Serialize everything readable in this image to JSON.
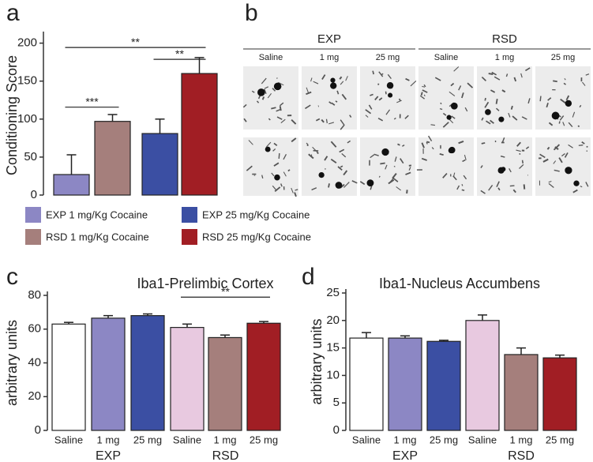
{
  "chart_data": [
    {
      "type": "bar",
      "panel": "a",
      "ylabel": "Conditioning Score",
      "categories": [
        "EXP 1 mg/Kg Cocaine",
        "RSD 1 mg/Kg Cocaine",
        "EXP 25 mg/Kg Cocaine",
        "RSD 25 mg/Kg Cocaine"
      ],
      "colors": [
        "#8c87c4",
        "#a57f7c",
        "#3b4fa3",
        "#a11e24"
      ],
      "values": [
        27,
        97,
        81,
        160
      ],
      "errors": [
        26,
        9,
        19,
        21
      ],
      "ylim": [
        0,
        210
      ],
      "yticks": [
        0,
        50,
        100,
        150,
        200
      ],
      "annotations": [
        {
          "text": "***",
          "between": [
            0,
            1
          ]
        },
        {
          "text": "**",
          "between": [
            2,
            3
          ]
        },
        {
          "text": "**",
          "between": [
            0,
            3
          ]
        }
      ]
    },
    {
      "type": "bar",
      "panel": "c",
      "title": "Iba1-Prelimbic Cortex",
      "ylabel": "arbitrary units",
      "categories": [
        "Saline",
        "1 mg",
        "25 mg",
        "Saline",
        "1 mg",
        "25 mg"
      ],
      "group_labels": [
        "EXP",
        "RSD"
      ],
      "colors": [
        "#ffffff",
        "#8c87c4",
        "#3b4fa3",
        "#e8c9e0",
        "#a57f7c",
        "#a11e24"
      ],
      "values": [
        63,
        66.5,
        68,
        61,
        55,
        63.5
      ],
      "errors": [
        1,
        1.5,
        1,
        2,
        1.5,
        1
      ],
      "ylim": [
        0,
        80
      ],
      "yticks": [
        0,
        20,
        40,
        60,
        80
      ],
      "annotations": [
        {
          "text": "**",
          "between": [
            3,
            5
          ]
        }
      ]
    },
    {
      "type": "bar",
      "panel": "d",
      "title": "Iba1-Nucleus Accumbens",
      "ylabel": "arbitrary units",
      "categories": [
        "Saline",
        "1 mg",
        "25 mg",
        "Saline",
        "1 mg",
        "25 mg"
      ],
      "group_labels": [
        "EXP",
        "RSD"
      ],
      "colors": [
        "#ffffff",
        "#8c87c4",
        "#3b4fa3",
        "#e8c9e0",
        "#a57f7c",
        "#a11e24"
      ],
      "values": [
        16.8,
        16.8,
        16.2,
        20,
        13.8,
        13.2
      ],
      "errors": [
        1,
        0.4,
        0.2,
        1,
        1.2,
        0.5
      ],
      "ylim": [
        0,
        25
      ],
      "yticks": [
        0,
        5,
        10,
        15,
        20,
        25
      ],
      "annotations": []
    }
  ],
  "panel_b": {
    "label": "b",
    "groups": [
      {
        "name": "EXP",
        "columns": [
          "Saline",
          "1 mg",
          "25 mg"
        ]
      },
      {
        "name": "RSD",
        "columns": [
          "Saline",
          "1 mg",
          "25 mg"
        ]
      }
    ]
  }
}
